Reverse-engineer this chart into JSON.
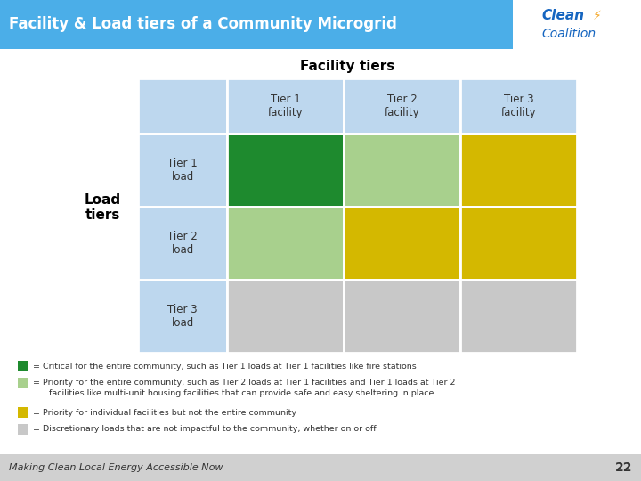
{
  "title": "Facility & Load tiers of a Community Microgrid",
  "facility_tiers_label": "Facility tiers",
  "load_tiers_label": "Load\ntiers",
  "col_headers": [
    "Tier 1\nfacility",
    "Tier 2\nfacility",
    "Tier 3\nfacility"
  ],
  "row_headers": [
    "Tier 1\nload",
    "Tier 2\nload",
    "Tier 3\nload"
  ],
  "header_bg": "#BDD7EE",
  "cell_colors": [
    [
      "#1E8A2E",
      "#A8D08D",
      "#D4B800"
    ],
    [
      "#A8D08D",
      "#D4B800",
      "#D4B800"
    ],
    [
      "#C8C8C8",
      "#C8C8C8",
      "#C8C8C8"
    ]
  ],
  "legend_items": [
    {
      "color": "#1E8A2E",
      "text": "= Critical for the entire community, such as Tier 1 loads at Tier 1 facilities like fire stations"
    },
    {
      "color": "#A8D08D",
      "text": "= Priority for the entire community, such as Tier 2 loads at Tier 1 facilities and Tier 1 loads at Tier 2\n      facilities like multi-unit housing facilities that can provide safe and easy sheltering in place"
    },
    {
      "color": "#D4B800",
      "text": "= Priority for individual facilities but not the entire community"
    },
    {
      "color": "#C8C8C8",
      "text": "= Discretionary loads that are not impactful to the community, whether on or off"
    }
  ],
  "footer_text": "Making Clean Local Energy Accessible Now",
  "footer_page": "22",
  "title_bg": "#4BAEE8",
  "title_color": "#FFFFFF",
  "footer_bg": "#D0D0D0",
  "white": "#FFFFFF"
}
